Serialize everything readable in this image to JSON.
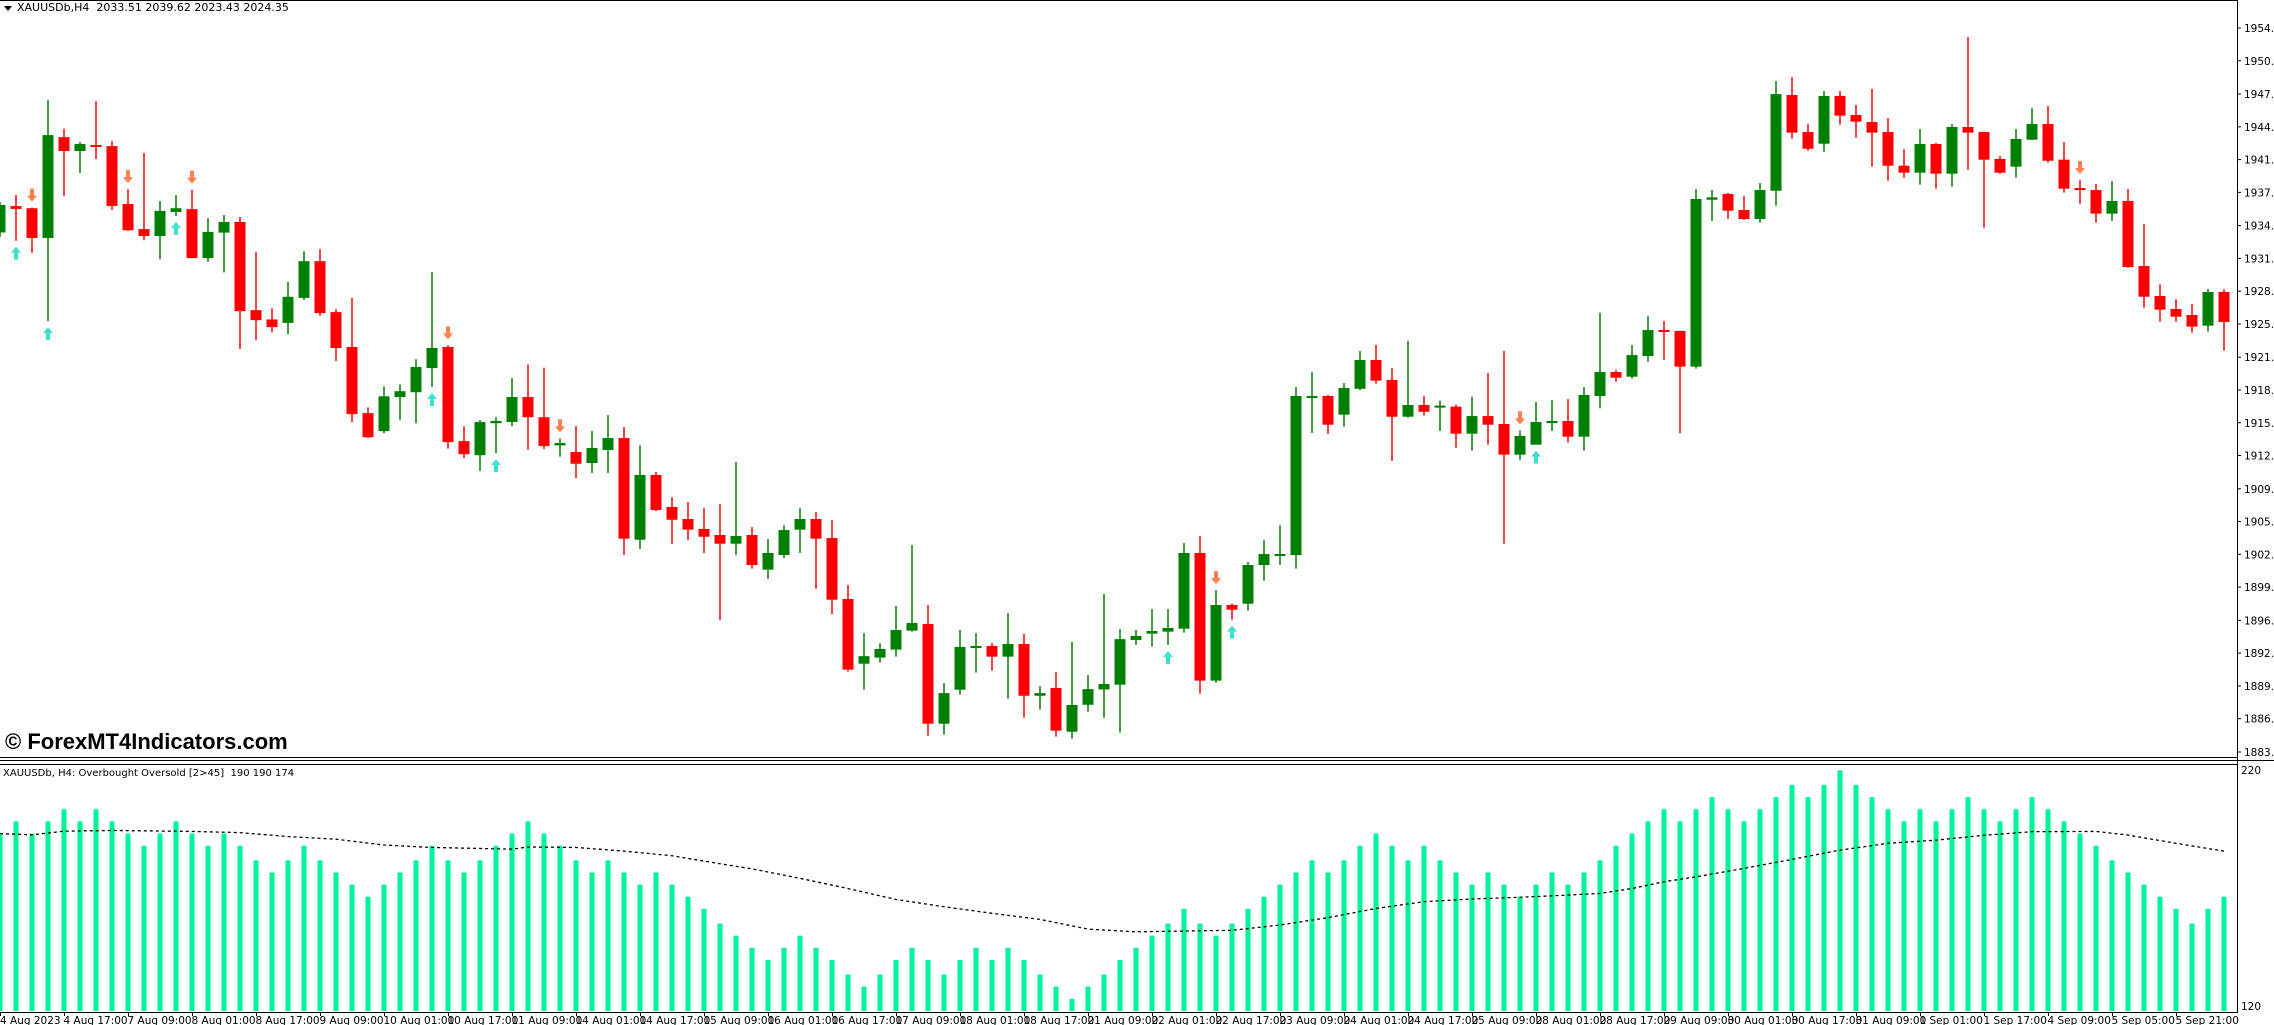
{
  "header": {
    "symbol": "XAUUSDb,H4",
    "ohlc_text": "2033.51 2039.62 2023.43 2024.35"
  },
  "watermark": "© ForexMT4Indicators.com",
  "indicator": {
    "label": "XAUUSDb, H4: Overbought Oversold [2>45]  190 190 174",
    "axis_labels": [
      "220",
      "120"
    ],
    "range": [
      120,
      220
    ],
    "histogram_color": "#00F59B",
    "ma_line_color": "#000000",
    "histogram": [
      193,
      198,
      193,
      198,
      203,
      198,
      203,
      198,
      193,
      188,
      193,
      198,
      193,
      188,
      193,
      188,
      182,
      177,
      182,
      188,
      182,
      177,
      172,
      167,
      172,
      177,
      182,
      188,
      182,
      177,
      182,
      188,
      193,
      198,
      193,
      188,
      182,
      177,
      182,
      177,
      172,
      177,
      172,
      167,
      162,
      156,
      151,
      146,
      141,
      146,
      151,
      146,
      141,
      135,
      130,
      135,
      141,
      146,
      141,
      135,
      141,
      146,
      141,
      146,
      141,
      135,
      130,
      125,
      130,
      135,
      141,
      146,
      151,
      156,
      162,
      156,
      151,
      156,
      162,
      167,
      172,
      177,
      182,
      177,
      182,
      188,
      193,
      188,
      182,
      188,
      182,
      177,
      172,
      177,
      172,
      167,
      172,
      177,
      172,
      177,
      182,
      188,
      193,
      198,
      203,
      198,
      203,
      208,
      203,
      198,
      203,
      208,
      213,
      208,
      213,
      219,
      213,
      208,
      203,
      198,
      203,
      198,
      203,
      208,
      203,
      198,
      203,
      208,
      203,
      198,
      193,
      188,
      182,
      177,
      172,
      167,
      162,
      156,
      162,
      167
    ],
    "ma_points": [
      [
        0,
        193
      ],
      [
        2,
        192.5
      ],
      [
        4,
        194
      ],
      [
        7,
        194.3
      ],
      [
        12,
        193.9
      ],
      [
        15,
        193.4
      ],
      [
        18,
        191.8
      ],
      [
        21,
        190.7
      ],
      [
        24,
        188.3
      ],
      [
        27,
        187.3
      ],
      [
        32,
        186.6
      ],
      [
        33,
        187.5
      ],
      [
        36,
        187.3
      ],
      [
        39,
        185.8
      ],
      [
        42,
        183.9
      ],
      [
        45,
        180.6
      ],
      [
        47,
        178.5
      ],
      [
        50,
        174.6
      ],
      [
        53,
        170.4
      ],
      [
        56,
        165.9
      ],
      [
        59,
        162.9
      ],
      [
        62,
        160.2
      ],
      [
        65,
        157.7
      ],
      [
        68,
        153.7
      ],
      [
        71,
        152.6
      ],
      [
        74,
        152.9
      ],
      [
        77,
        153.2
      ],
      [
        80,
        155.4
      ],
      [
        83,
        158.4
      ],
      [
        86,
        162.2
      ],
      [
        89,
        165
      ],
      [
        92,
        166.1
      ],
      [
        95,
        166.8
      ],
      [
        98,
        167.7
      ],
      [
        100,
        168.4
      ],
      [
        102,
        170.4
      ],
      [
        104,
        173.2
      ],
      [
        106,
        175.2
      ],
      [
        109,
        178.7
      ],
      [
        112,
        182.4
      ],
      [
        115,
        186.2
      ],
      [
        118,
        189
      ],
      [
        121,
        190.3
      ],
      [
        124,
        192.3
      ],
      [
        127,
        193.8
      ],
      [
        131,
        193.9
      ],
      [
        133,
        192.4
      ],
      [
        136,
        189
      ],
      [
        139,
        185.8
      ]
    ]
  },
  "chart_data": {
    "type": "candlestick",
    "colors": {
      "bull": "#008000",
      "bear": "#FF0000",
      "buy_arrow": "#40E0D0",
      "sell_arrow": "#FF7F50"
    },
    "ylim": [
      1883.3,
      1954.0
    ],
    "price_labels": [
      "1954.00",
      "1950.80",
      "1947.55",
      "1944.35",
      "1941.15",
      "1937.95",
      "1934.70",
      "1931.50",
      "1928.30",
      "1925.10",
      "1921.85",
      "1918.65",
      "1915.45",
      "1912.25",
      "1909.00",
      "1905.80",
      "1902.60",
      "1899.40",
      "1896.15",
      "1892.95",
      "1889.75",
      "1886.55",
      "1883.30"
    ],
    "time_labels": [
      "4 Aug 2023",
      "4 Aug 17:00",
      "7 Aug 09:00",
      "8 Aug 01:00",
      "8 Aug 17:00",
      "9 Aug 09:00",
      "10 Aug 01:00",
      "10 Aug 17:00",
      "11 Aug 09:00",
      "14 Aug 01:00",
      "14 Aug 17:00",
      "15 Aug 09:00",
      "16 Aug 01:00",
      "16 Aug 17:00",
      "17 Aug 09:00",
      "18 Aug 01:00",
      "18 Aug 17:00",
      "21 Aug 09:00",
      "22 Aug 01:00",
      "22 Aug 17:00",
      "23 Aug 09:00",
      "24 Aug 01:00",
      "24 Aug 17:00",
      "25 Aug 09:00",
      "28 Aug 01:00",
      "28 Aug 17:00",
      "29 Aug 09:00",
      "30 Aug 01:00",
      "30 Aug 17:00",
      "31 Aug 09:00",
      "1 Sep 01:00",
      "1 Sep 17:00",
      "4 Sep 09:00",
      "5 Sep 05:00",
      "5 Sep 21:00"
    ],
    "candles_ohlc": [
      [
        1934.03,
        1937.0,
        1933.6,
        1936.72
      ],
      [
        1936.61,
        1937.69,
        1933.22,
        1936.33
      ],
      [
        1936.4,
        1936.46,
        1932.05,
        1933.49
      ],
      [
        1933.49,
        1946.97,
        1925.37,
        1943.54
      ],
      [
        1943.34,
        1944.15,
        1937.58,
        1941.99
      ],
      [
        1941.99,
        1942.87,
        1939.84,
        1942.67
      ],
      [
        1942.57,
        1946.86,
        1941.21,
        1942.39
      ],
      [
        1942.46,
        1942.97,
        1936.24,
        1936.61
      ],
      [
        1936.81,
        1938.26,
        1934.18,
        1934.25
      ],
      [
        1934.36,
        1941.8,
        1933.28,
        1933.69
      ],
      [
        1933.69,
        1937.11,
        1931.41,
        1936.14
      ],
      [
        1936.03,
        1937.69,
        1935.64,
        1936.4
      ],
      [
        1936.31,
        1938.2,
        1931.53,
        1931.53
      ],
      [
        1931.53,
        1935.43,
        1931.16,
        1934.09
      ],
      [
        1934.02,
        1935.74,
        1930.13,
        1935.06
      ],
      [
        1935.06,
        1935.54,
        1922.65,
        1926.35
      ],
      [
        1926.45,
        1932.13,
        1923.53,
        1925.47
      ],
      [
        1925.54,
        1926.62,
        1924.29,
        1924.79
      ],
      [
        1925.2,
        1929.2,
        1924.09,
        1927.75
      ],
      [
        1927.64,
        1932.21,
        1927.44,
        1931.23
      ],
      [
        1931.23,
        1932.41,
        1925.89,
        1926.16
      ],
      [
        1926.25,
        1926.55,
        1921.48,
        1922.75
      ],
      [
        1922.85,
        1927.64,
        1915.52,
        1916.29
      ],
      [
        1916.39,
        1916.96,
        1913.95,
        1914.04
      ],
      [
        1914.63,
        1919.0,
        1914.43,
        1918.03
      ],
      [
        1917.96,
        1919.2,
        1915.72,
        1918.53
      ],
      [
        1918.43,
        1921.66,
        1915.41,
        1920.89
      ],
      [
        1920.79,
        1930.15,
        1918.94,
        1922.75
      ],
      [
        1922.85,
        1923.01,
        1912.92,
        1913.56
      ],
      [
        1913.66,
        1915.1,
        1911.97,
        1912.38
      ],
      [
        1912.28,
        1915.72,
        1910.74,
        1915.52
      ],
      [
        1915.41,
        1915.99,
        1912.48,
        1915.62
      ],
      [
        1915.52,
        1919.81,
        1915.1,
        1917.96
      ],
      [
        1917.96,
        1921.13,
        1912.82,
        1915.99
      ],
      [
        1915.99,
        1920.83,
        1912.89,
        1913.17
      ],
      [
        1913.24,
        1913.92,
        1912.13,
        1913.47
      ],
      [
        1912.59,
        1915.13,
        1910.05,
        1911.45
      ],
      [
        1911.52,
        1914.64,
        1910.54,
        1912.98
      ],
      [
        1912.79,
        1916.2,
        1910.54,
        1913.96
      ],
      [
        1913.96,
        1915.04,
        1902.53,
        1904.13
      ],
      [
        1904.03,
        1913.27,
        1903.12,
        1910.35
      ],
      [
        1910.35,
        1910.64,
        1906.83,
        1906.93
      ],
      [
        1907.22,
        1908.19,
        1903.61,
        1905.98
      ],
      [
        1906.05,
        1907.71,
        1903.99,
        1905.01
      ],
      [
        1905.08,
        1907.12,
        1902.73,
        1904.32
      ],
      [
        1904.49,
        1907.51,
        1896.18,
        1903.64
      ],
      [
        1903.64,
        1911.62,
        1902.53,
        1904.39
      ],
      [
        1904.49,
        1905.26,
        1901.2,
        1901.56
      ],
      [
        1901.1,
        1904.1,
        1900.19,
        1902.73
      ],
      [
        1902.53,
        1905.46,
        1902.24,
        1904.97
      ],
      [
        1905.01,
        1907.12,
        1902.73,
        1906.05
      ],
      [
        1906.05,
        1906.73,
        1899.22,
        1904.13
      ],
      [
        1904.19,
        1905.95,
        1896.77,
        1898.17
      ],
      [
        1898.24,
        1899.61,
        1891.14,
        1891.34
      ],
      [
        1891.92,
        1894.91,
        1889.38,
        1892.66
      ],
      [
        1892.51,
        1893.93,
        1892.02,
        1893.36
      ],
      [
        1893.3,
        1897.56,
        1892.61,
        1895.21
      ],
      [
        1895.15,
        1903.51,
        1895.05,
        1895.89
      ],
      [
        1895.79,
        1897.65,
        1884.89,
        1886.06
      ],
      [
        1886.06,
        1890.03,
        1884.98,
        1889.05
      ],
      [
        1889.38,
        1895.21,
        1888.89,
        1893.56
      ],
      [
        1893.45,
        1894.91,
        1891.04,
        1893.65
      ],
      [
        1893.65,
        1893.93,
        1891.24,
        1892.61
      ],
      [
        1892.61,
        1896.87,
        1888.5,
        1893.84
      ],
      [
        1893.84,
        1894.82,
        1886.64,
        1888.79
      ],
      [
        1888.79,
        1889.73,
        1887.43,
        1889.05
      ],
      [
        1889.55,
        1891.11,
        1884.79,
        1885.38
      ],
      [
        1885.28,
        1894.04,
        1884.59,
        1887.89
      ],
      [
        1887.91,
        1890.82,
        1887.23,
        1889.44
      ],
      [
        1889.4,
        1898.72,
        1886.64,
        1889.94
      ],
      [
        1889.87,
        1895.31,
        1885.19,
        1894.32
      ],
      [
        1894.24,
        1895.21,
        1893.75,
        1894.62
      ],
      [
        1894.85,
        1897.26,
        1893.58,
        1895.11
      ],
      [
        1895.05,
        1897.26,
        1893.75,
        1895.41
      ],
      [
        1895.34,
        1903.71,
        1894.95,
        1902.73
      ],
      [
        1902.73,
        1904.39,
        1888.99,
        1890.27
      ],
      [
        1890.27,
        1899.11,
        1890.07,
        1897.65
      ],
      [
        1897.65,
        1897.78,
        1896.22,
        1897.19
      ],
      [
        1897.78,
        1901.85,
        1897.1,
        1901.56
      ],
      [
        1901.56,
        1903.99,
        1900.03,
        1902.63
      ],
      [
        1902.53,
        1905.46,
        1901.56,
        1902.63
      ],
      [
        1902.53,
        1918.94,
        1901.2,
        1918.06
      ],
      [
        1917.99,
        1920.4,
        1914.45,
        1918.06
      ],
      [
        1918.06,
        1918.16,
        1914.35,
        1915.26
      ],
      [
        1916.24,
        1919.33,
        1915.06,
        1918.84
      ],
      [
        1918.77,
        1922.46,
        1918.64,
        1921.58
      ],
      [
        1921.58,
        1923.04,
        1919.26,
        1919.56
      ],
      [
        1919.63,
        1920.79,
        1911.71,
        1916.04
      ],
      [
        1916.04,
        1923.44,
        1915.94,
        1917.18
      ],
      [
        1917.18,
        1918.06,
        1916.15,
        1916.53
      ],
      [
        1916.96,
        1917.61,
        1914.64,
        1917.12
      ],
      [
        1917.02,
        1917.22,
        1913.02,
        1914.38
      ],
      [
        1914.38,
        1918.0,
        1912.73,
        1916.1
      ],
      [
        1916.1,
        1920.31,
        1913.31,
        1915.26
      ],
      [
        1915.33,
        1922.46,
        1903.64,
        1912.33
      ],
      [
        1912.33,
        1914.71,
        1911.83,
        1914.16
      ],
      [
        1913.31,
        1917.47,
        1913.31,
        1915.52
      ],
      [
        1915.52,
        1917.66,
        1914.64,
        1915.62
      ],
      [
        1915.62,
        1917.76,
        1913.52,
        1914.09
      ],
      [
        1914.09,
        1918.94,
        1912.73,
        1918.16
      ],
      [
        1918.06,
        1926.2,
        1916.86,
        1920.4
      ],
      [
        1920.4,
        1920.6,
        1919.46,
        1919.85
      ],
      [
        1919.95,
        1923.04,
        1919.75,
        1922.06
      ],
      [
        1921.97,
        1925.87,
        1921.41,
        1924.51
      ],
      [
        1924.51,
        1925.38,
        1921.58,
        1924.34
      ],
      [
        1924.41,
        1924.45,
        1914.41,
        1920.93
      ],
      [
        1920.93,
        1938.28,
        1920.73,
        1937.3
      ],
      [
        1937.23,
        1938.18,
        1935.15,
        1937.46
      ],
      [
        1937.79,
        1937.89,
        1935.35,
        1936.16
      ],
      [
        1936.23,
        1937.59,
        1935.25,
        1935.35
      ],
      [
        1935.35,
        1938.86,
        1934.99,
        1938.18
      ],
      [
        1938.11,
        1948.82,
        1936.65,
        1947.55
      ],
      [
        1947.46,
        1949.21,
        1943.19,
        1943.78
      ],
      [
        1943.84,
        1944.62,
        1942.02,
        1942.21
      ],
      [
        1942.7,
        1947.85,
        1941.92,
        1947.36
      ],
      [
        1947.36,
        1947.85,
        1944.56,
        1945.44
      ],
      [
        1945.5,
        1946.48,
        1943.29,
        1944.85
      ],
      [
        1944.82,
        1948.04,
        1940.46,
        1943.78
      ],
      [
        1943.84,
        1945.21,
        1939.09,
        1940.55
      ],
      [
        1940.55,
        1942.18,
        1939.38,
        1939.87
      ],
      [
        1939.87,
        1944.14,
        1938.7,
        1942.67
      ],
      [
        1942.67,
        1942.77,
        1938.31,
        1939.77
      ],
      [
        1939.77,
        1944.62,
        1938.5,
        1944.33
      ],
      [
        1944.33,
        1953.12,
        1940.16,
        1943.78
      ],
      [
        1943.84,
        1943.84,
        1934.5,
        1941.14
      ],
      [
        1941.21,
        1941.5,
        1939.77,
        1939.87
      ],
      [
        1940.46,
        1944.14,
        1939.38,
        1943.16
      ],
      [
        1943.09,
        1946.19,
        1943.09,
        1944.62
      ],
      [
        1944.62,
        1946.38,
        1940.85,
        1941.04
      ],
      [
        1941.14,
        1942.87,
        1937.92,
        1938.31
      ],
      [
        1938.37,
        1939.15,
        1936.84,
        1938.21
      ],
      [
        1938.18,
        1938.76,
        1934.99,
        1935.87
      ],
      [
        1935.87,
        1939.06,
        1935.15,
        1937.1
      ],
      [
        1937.1,
        1938.28,
        1930.56,
        1930.66
      ],
      [
        1930.76,
        1934.86,
        1926.69,
        1927.76
      ],
      [
        1927.83,
        1928.96,
        1925.32,
        1926.49
      ],
      [
        1926.56,
        1927.53,
        1925.32,
        1925.81
      ],
      [
        1925.97,
        1927.05,
        1924.25,
        1924.83
      ],
      [
        1924.93,
        1928.51,
        1924.35,
        1928.22
      ],
      [
        1928.22,
        1928.48,
        1922.49,
        1925.29
      ]
    ],
    "buy_arrows": [
      1,
      3,
      11,
      27,
      31,
      73,
      77,
      96
    ],
    "sell_arrows": [
      2,
      8,
      12,
      28,
      35,
      76,
      95,
      130
    ]
  }
}
